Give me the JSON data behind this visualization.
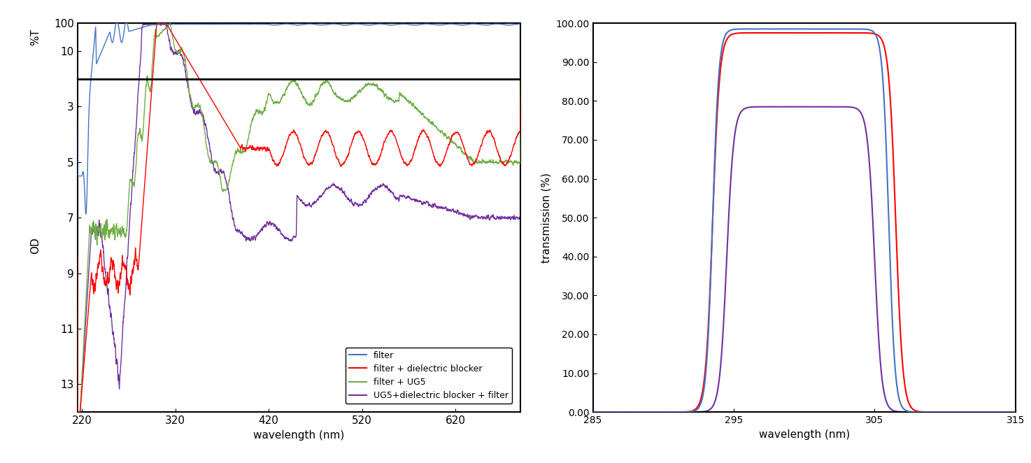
{
  "left_xlabel": "wavelength (nm)",
  "left_ylabel_od": "OD",
  "left_ylabel_pct": "%T",
  "right_xlabel": "wavelength (nm)",
  "right_ylabel": "transmission (%)",
  "left_xlim": [
    215,
    690
  ],
  "left_xticks": [
    220,
    320,
    420,
    520,
    620
  ],
  "right_xlim": [
    285,
    315
  ],
  "right_xticks": [
    285,
    295,
    305,
    315
  ],
  "right_ylim": [
    0,
    100
  ],
  "right_yticks": [
    0.0,
    10.0,
    20.0,
    30.0,
    40.0,
    50.0,
    60.0,
    70.0,
    80.0,
    90.0,
    100.0
  ],
  "line_colors": {
    "filter": "#4472C4",
    "filter_dielectric": "#FF0000",
    "filter_UG5": "#70AD47",
    "UG5_dielectric_filter": "#7030A0"
  },
  "legend_labels": [
    "filter",
    "filter + dielectric blocker",
    "filter + UG5",
    "UG5+dielectric blocker + filter"
  ],
  "hline_od": 2.0,
  "left_ytick_positions_od": [
    0,
    1,
    3,
    5,
    7,
    9,
    11,
    13
  ],
  "left_ytick_labels": [
    "100",
    "10",
    "3",
    "5",
    "7",
    "9",
    "11",
    "13"
  ],
  "ymax": 14.0,
  "figure_size": [
    14.74,
    6.62
  ],
  "dpi": 100
}
